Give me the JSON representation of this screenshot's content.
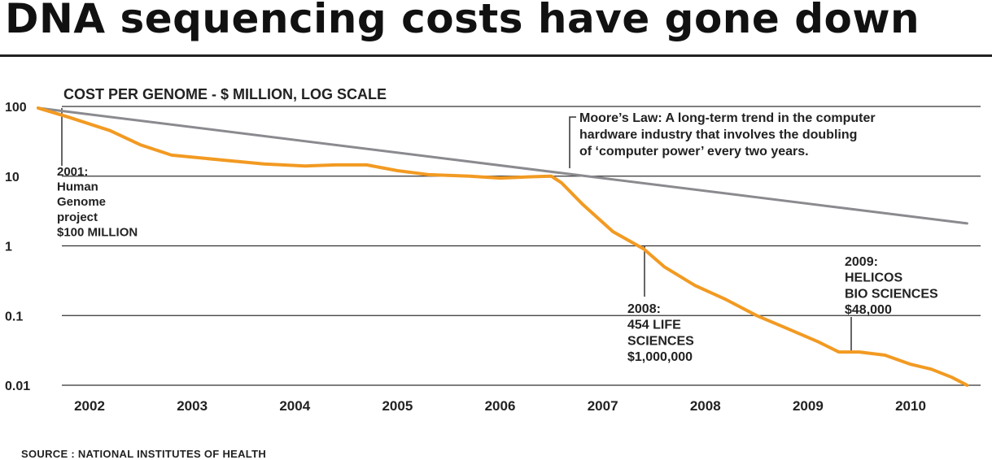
{
  "title": "DNA sequencing costs have gone down",
  "source": "SOURCE : NATIONAL INSTITUTES OF HEALTH",
  "colors": {
    "cost_line": "#f29a22",
    "moores_line": "#8a8a8f",
    "grid": "#333333"
  },
  "chart_data": {
    "type": "line",
    "title": "DNA sequencing costs have gone down",
    "subtitle": "COST PER GENOME - $ MILLION, LOG SCALE",
    "yscale": "log",
    "ylim": [
      0.01,
      100
    ],
    "xlim": [
      2001.5,
      2010.8
    ],
    "y_ticks": [
      {
        "value": 100,
        "label": "100"
      },
      {
        "value": 10,
        "label": "10"
      },
      {
        "value": 1,
        "label": "1"
      },
      {
        "value": 0.1,
        "label": "0.1"
      },
      {
        "value": 0.01,
        "label": "0.01"
      }
    ],
    "x_ticks": [
      {
        "value": 2002,
        "label": "2002"
      },
      {
        "value": 2003,
        "label": "2003"
      },
      {
        "value": 2004,
        "label": "2004"
      },
      {
        "value": 2005,
        "label": "2005"
      },
      {
        "value": 2006,
        "label": "2006"
      },
      {
        "value": 2007,
        "label": "2007"
      },
      {
        "value": 2008,
        "label": "2008"
      },
      {
        "value": 2009,
        "label": "2009"
      },
      {
        "value": 2010,
        "label": "2010"
      }
    ],
    "grid": "horizontal",
    "series": [
      {
        "key": "cost",
        "x": [
          2001.5,
          2001.8,
          2002.2,
          2002.5,
          2002.8,
          2003.3,
          2003.7,
          2004.1,
          2004.4,
          2004.7,
          2005.0,
          2005.3,
          2005.7,
          2006.0,
          2006.3,
          2006.5,
          2006.6,
          2006.8,
          2007.1,
          2007.4,
          2007.6,
          2007.9,
          2008.2,
          2008.5,
          2008.8,
          2009.1,
          2009.3,
          2009.5,
          2009.75,
          2010.0,
          2010.2,
          2010.4,
          2010.55
        ],
        "y": [
          95,
          70,
          45,
          28,
          20,
          17,
          15,
          14,
          14.5,
          14.5,
          12,
          10.5,
          10,
          9.4,
          9.8,
          10,
          8,
          4,
          1.6,
          0.9,
          0.5,
          0.27,
          0.17,
          0.1,
          0.065,
          0.042,
          0.03,
          0.03,
          0.027,
          0.02,
          0.017,
          0.013,
          0.01
        ]
      },
      {
        "key": "moores_law",
        "x": [
          2001.5,
          2010.55
        ],
        "y": [
          95,
          2.1
        ]
      }
    ],
    "annotations": [
      {
        "key": "hgp",
        "lines": [
          "2001:",
          "Human",
          "Genome",
          "project",
          "$100 MILLION"
        ],
        "point": [
          2001.5,
          95
        ]
      },
      {
        "key": "moore",
        "lines": [
          "Moore’s Law: A long-term trend in the computer",
          "hardware industry that involves the doubling",
          "of ‘computer power’ every two years."
        ],
        "point": [
          2006.7,
          8.5
        ]
      },
      {
        "key": "life454",
        "lines": [
          "2008:",
          "454 LIFE",
          "SCIENCES",
          "$1,000,000"
        ],
        "point": [
          2007.4,
          0.9
        ]
      },
      {
        "key": "helicos",
        "lines": [
          "2009:",
          "HELICOS",
          "BIO SCIENCES",
          "$48,000"
        ],
        "point": [
          2009.4,
          0.03
        ]
      }
    ]
  }
}
